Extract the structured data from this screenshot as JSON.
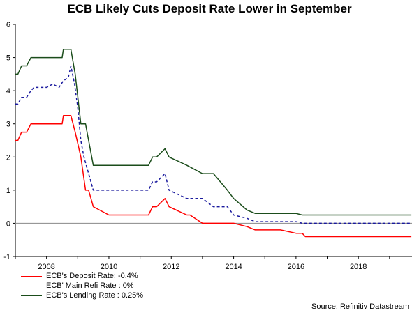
{
  "chart_data": {
    "type": "line",
    "title": "ECB Likely Cuts Deposit Rate Lower in September",
    "source": "Source: Refinitiv Datastream",
    "xlabel": "",
    "ylabel": "",
    "xlim": [
      2007.0,
      2019.72
    ],
    "ylim": [
      -1,
      6
    ],
    "x_ticks": [
      2008,
      2010,
      2012,
      2014,
      2016,
      2018
    ],
    "y_ticks": [
      -1,
      0,
      1,
      2,
      3,
      4,
      5,
      6
    ],
    "zero_line": true,
    "series": [
      {
        "name": "ECB's Deposit Rate: -0.4%",
        "color": "#ff0000",
        "dash": "",
        "x": [
          2007.0,
          2007.08,
          2007.2,
          2007.36,
          2007.5,
          2007.75,
          2008.0,
          2008.5,
          2008.54,
          2008.78,
          2008.92,
          2009.1,
          2009.25,
          2009.35,
          2009.5,
          2010.0,
          2011.0,
          2011.27,
          2011.4,
          2011.53,
          2011.8,
          2011.93,
          2012.5,
          2012.6,
          2013.0,
          2013.8,
          2014.0,
          2014.43,
          2014.69,
          2015.0,
          2015.5,
          2016.0,
          2016.2,
          2016.3,
          2017.0,
          2018.0,
          2019.7
        ],
        "y": [
          2.5,
          2.5,
          2.75,
          2.75,
          3.0,
          3.0,
          3.0,
          3.0,
          3.25,
          3.25,
          2.75,
          2.0,
          1.0,
          1.0,
          0.5,
          0.25,
          0.25,
          0.25,
          0.5,
          0.5,
          0.75,
          0.5,
          0.25,
          0.25,
          0.0,
          0.0,
          0.0,
          -0.1,
          -0.2,
          -0.2,
          -0.2,
          -0.3,
          -0.3,
          -0.4,
          -0.4,
          -0.4,
          -0.4
        ]
      },
      {
        "name": "ECB' Main Refi Rate : 0%",
        "color": "#1a1a9e",
        "dash": "4,3",
        "x": [
          2007.0,
          2007.08,
          2007.2,
          2007.36,
          2007.5,
          2007.6,
          2007.8,
          2008.0,
          2008.2,
          2008.4,
          2008.54,
          2008.7,
          2008.78,
          2008.9,
          2009.0,
          2009.1,
          2009.2,
          2009.35,
          2009.5,
          2010.0,
          2011.0,
          2011.27,
          2011.4,
          2011.53,
          2011.8,
          2011.93,
          2012.5,
          2013.0,
          2013.35,
          2013.8,
          2014.0,
          2014.43,
          2014.69,
          2016.0,
          2016.2,
          2017.0,
          2018.0,
          2019.7
        ],
        "y": [
          3.6,
          3.6,
          3.8,
          3.8,
          4.0,
          4.1,
          4.1,
          4.1,
          4.2,
          4.1,
          4.3,
          4.4,
          4.75,
          4.2,
          3.5,
          2.5,
          2.0,
          1.5,
          1.0,
          1.0,
          1.0,
          1.0,
          1.25,
          1.25,
          1.5,
          1.0,
          0.75,
          0.75,
          0.5,
          0.5,
          0.25,
          0.15,
          0.05,
          0.05,
          0.0,
          0.0,
          0.0,
          0.0
        ]
      },
      {
        "name": "ECB's Lending Rate : 0.25%",
        "color": "#1b4d1b",
        "dash": "",
        "x": [
          2007.0,
          2007.08,
          2007.2,
          2007.36,
          2007.5,
          2008.0,
          2008.5,
          2008.54,
          2008.78,
          2008.92,
          2009.1,
          2009.25,
          2009.35,
          2009.5,
          2010.0,
          2011.0,
          2011.27,
          2011.4,
          2011.53,
          2011.8,
          2011.93,
          2012.5,
          2013.0,
          2013.35,
          2013.8,
          2014.0,
          2014.43,
          2014.69,
          2016.0,
          2016.2,
          2017.0,
          2018.0,
          2019.7
        ],
        "y": [
          4.5,
          4.5,
          4.75,
          4.75,
          5.0,
          5.0,
          5.0,
          5.25,
          5.25,
          4.5,
          3.0,
          3.0,
          2.5,
          1.75,
          1.75,
          1.75,
          1.75,
          2.0,
          2.0,
          2.25,
          2.0,
          1.75,
          1.5,
          1.5,
          1.0,
          0.75,
          0.4,
          0.3,
          0.3,
          0.25,
          0.25,
          0.25,
          0.25
        ]
      }
    ]
  }
}
